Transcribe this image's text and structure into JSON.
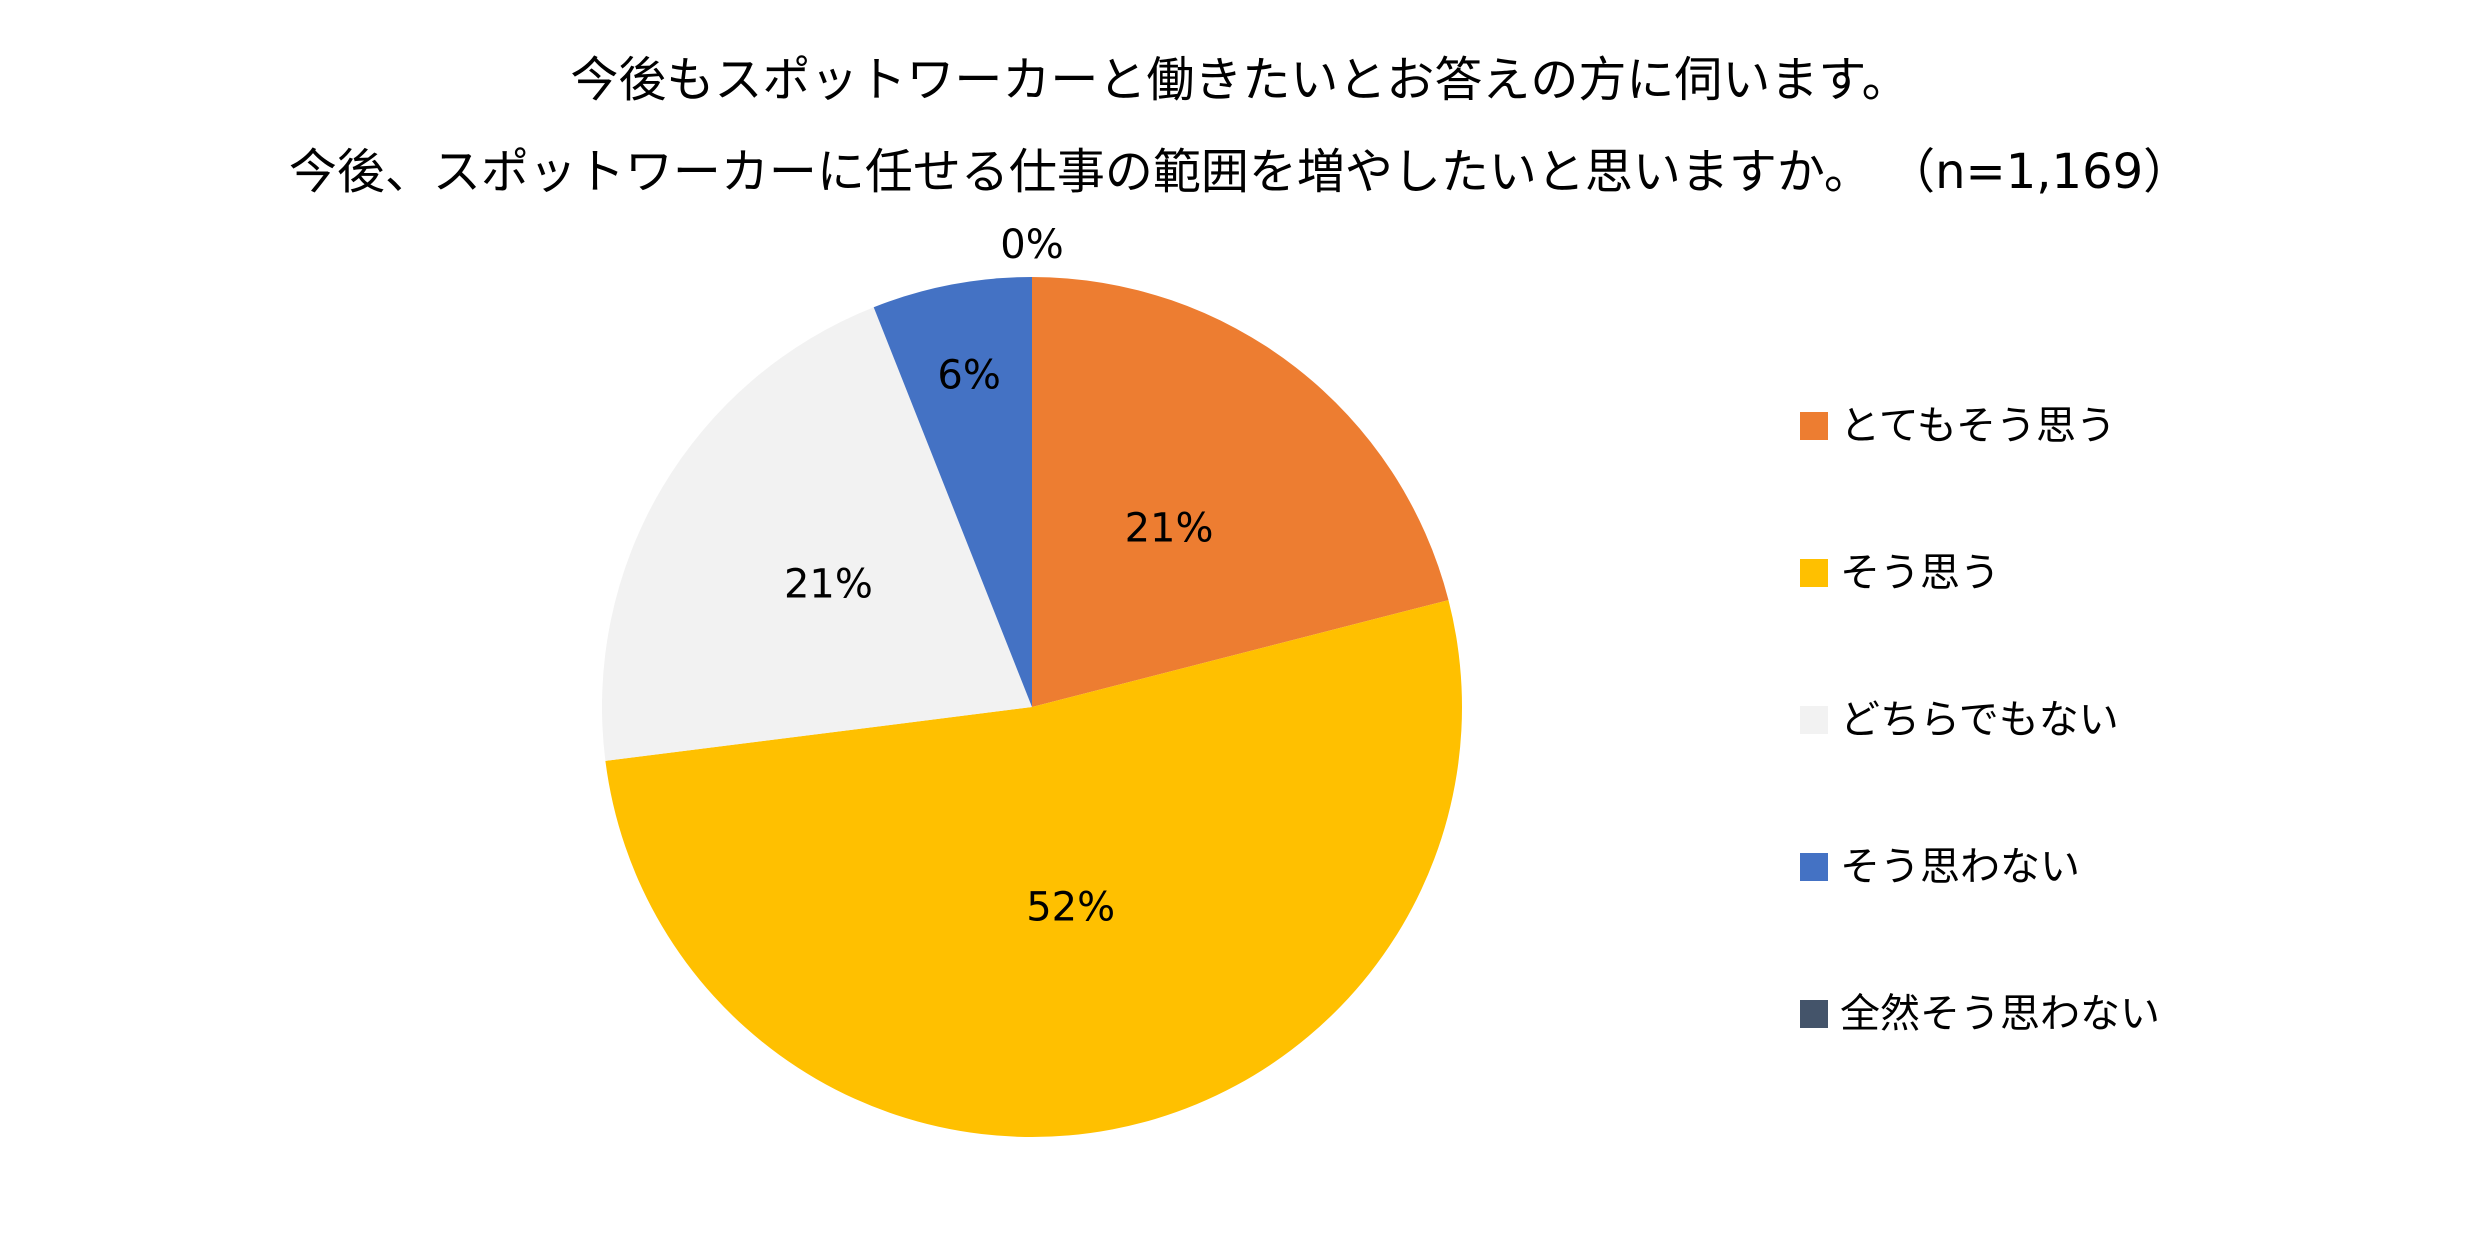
{
  "chart_data": {
    "type": "pie",
    "title": "今後もスポットワーカーと働きたいとお答えの方に伺います。",
    "subtitle": "今後、スポットワーカーに任せる仕事の範囲を増やしたいと思いますか。 （n=1,169）",
    "categories": [
      "とてもそう思う",
      "そう思う",
      "どちらでもない",
      "そう思わない",
      "全然そう思わない"
    ],
    "values": [
      21,
      52,
      21,
      6,
      0
    ],
    "data_labels": [
      "21%",
      "52%",
      "21%",
      "6%",
      "0%"
    ],
    "colors": [
      "#ED7D31",
      "#FFC000",
      "#F2F2F2",
      "#4472C4",
      "#44546A"
    ],
    "start_angle_deg": 0,
    "direction": "clockwise",
    "legend": "right"
  }
}
